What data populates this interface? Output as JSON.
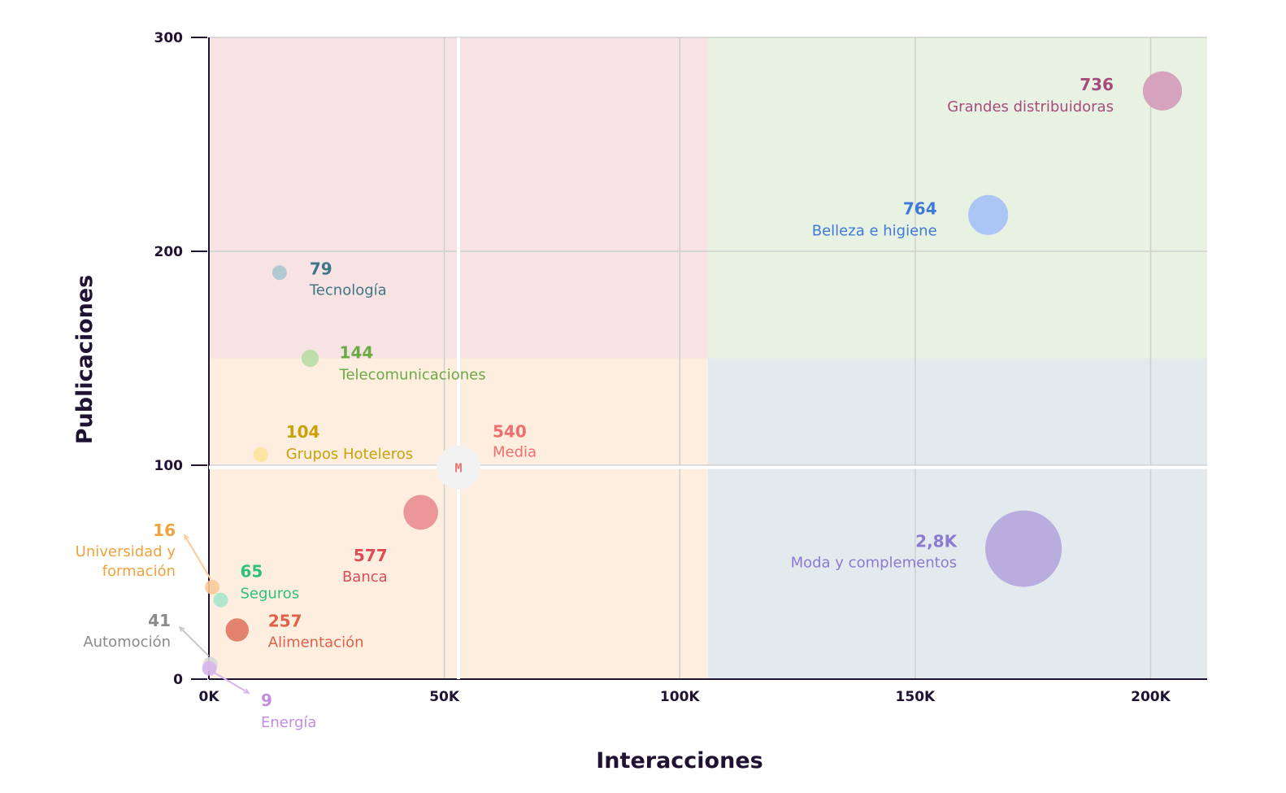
{
  "chart_data": {
    "type": "scatter",
    "xlabel": "Interacciones",
    "ylabel": "Publicaciones",
    "xlim": [
      0,
      212000
    ],
    "ylim": [
      0,
      300
    ],
    "x_ticks": [
      "0K",
      "50K",
      "100K",
      "150K",
      "200K"
    ],
    "x_tick_values": [
      0,
      50000,
      100000,
      150000,
      200000
    ],
    "y_ticks": [
      "0",
      "100",
      "200",
      "300"
    ],
    "y_tick_values": [
      0,
      100,
      200,
      300
    ],
    "grid": true,
    "quadrants": {
      "x_split": 106000,
      "y_split": 150,
      "colors": {
        "top_left": "#f7e3e3",
        "top_right": "#e8f2e3",
        "bottom_left": "#fdeedf",
        "bottom_right": "#e3eaee"
      }
    },
    "median": {
      "x": 53000,
      "y": 99,
      "marker": "M",
      "value": "540",
      "name": "Media",
      "color": "#f06e6e"
    },
    "points": [
      {
        "name": "Grandes distribuidoras",
        "value": "736",
        "x": 202500,
        "y": 275,
        "size": 736,
        "color": "#d49ab9",
        "label_color": "#a64b7c"
      },
      {
        "name": "Belleza e higiene",
        "value": "764",
        "x": 165500,
        "y": 217,
        "size": 764,
        "color": "#a4c1f6",
        "label_color": "#3f7ad8"
      },
      {
        "name": "Tecnología",
        "value": "79",
        "x": 15000,
        "y": 190,
        "size": 79,
        "color": "#a9c5ce",
        "label_color": "#3f7687"
      },
      {
        "name": "Telecomunicaciones",
        "value": "144",
        "x": 21500,
        "y": 150,
        "size": 144,
        "color": "#b7dca6",
        "label_color": "#6bab45"
      },
      {
        "name": "Grupos Hoteleros",
        "value": "104",
        "x": 11000,
        "y": 105,
        "size": 104,
        "color": "#fbe39a",
        "label_color": "#c9a20a"
      },
      {
        "name": "Banca",
        "value": "577",
        "x": 45000,
        "y": 78,
        "size": 577,
        "color": "#e98d91",
        "label_color": "#e04b55"
      },
      {
        "name": "Moda y complementos",
        "value": "2,8K",
        "x": 173000,
        "y": 61,
        "size": 2800,
        "color": "#b4a5dc",
        "label_color": "#8c7ad0"
      },
      {
        "name": "Seguros",
        "value": "65",
        "x": 2500,
        "y": 37,
        "size": 65,
        "color": "#a5e6cb",
        "label_color": "#2ec07d"
      },
      {
        "name": "Universidad y formación",
        "value": "16",
        "x": 700,
        "y": 43,
        "size": 16,
        "color": "#fbc999",
        "label_color": "#f0a23e"
      },
      {
        "name": "Alimentación",
        "value": "257",
        "x": 6000,
        "y": 23,
        "size": 257,
        "color": "#e07763",
        "label_color": "#e06248"
      },
      {
        "name": "Automoción",
        "value": "41",
        "x": 300,
        "y": 7,
        "size": 41,
        "color": "#d9d9d9",
        "label_color": "#8a8a8a"
      },
      {
        "name": "Energía",
        "value": "9",
        "x": 100,
        "y": 5,
        "size": 9,
        "color": "#d6b6ec",
        "label_color": "#c18ee2"
      }
    ]
  }
}
